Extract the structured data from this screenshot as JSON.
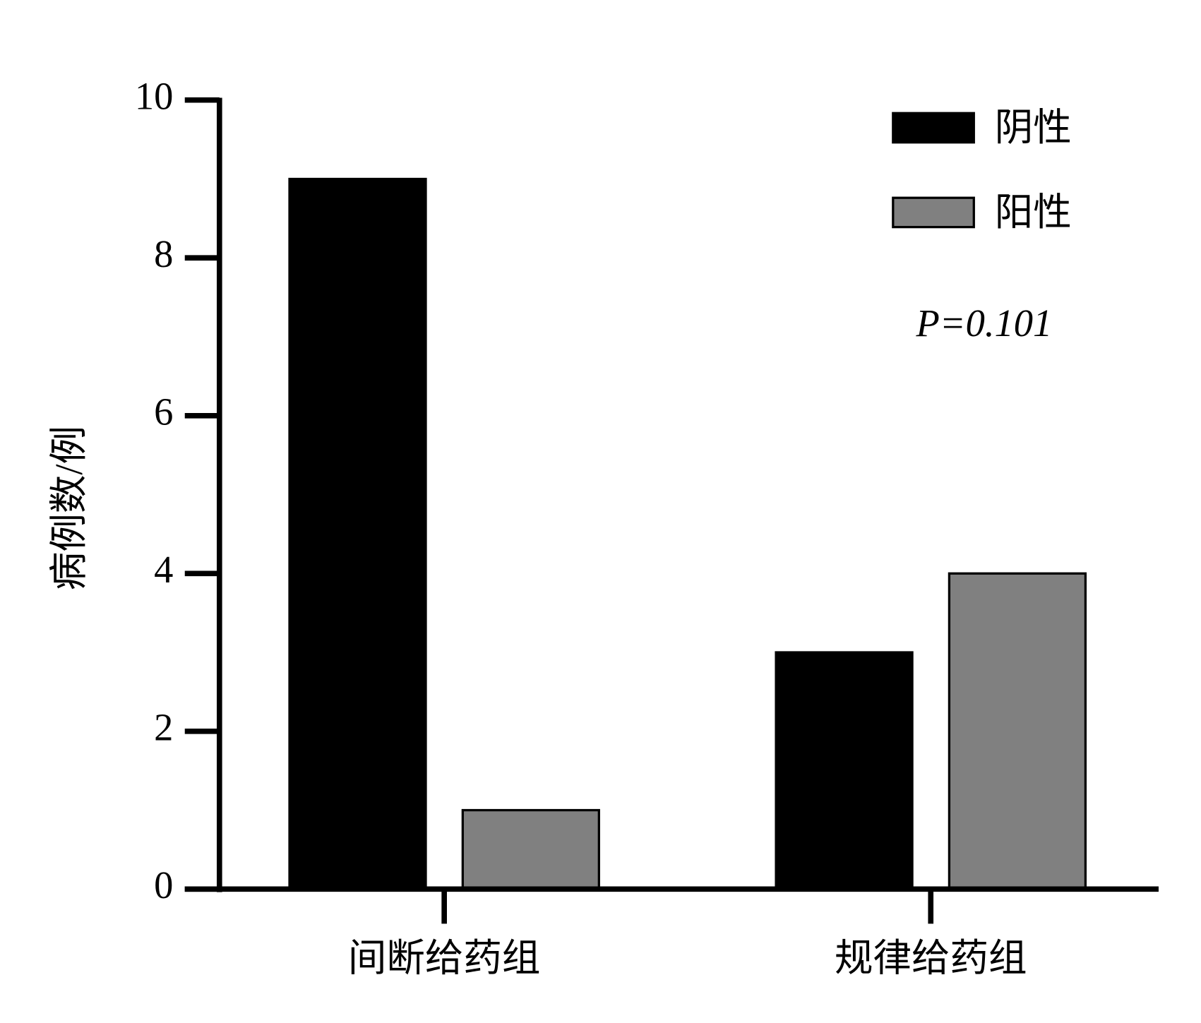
{
  "chart_data": {
    "type": "bar",
    "y_label": "病例数/例",
    "annotation": "P=0.101",
    "categories": [
      "间断给药组",
      "规律给药组"
    ],
    "series": [
      {
        "name": "阴性",
        "color": "#000000",
        "values": [
          9,
          3
        ]
      },
      {
        "name": "阳性",
        "color": "#808080",
        "values": [
          1,
          4
        ]
      }
    ],
    "ylim": [
      0,
      10
    ],
    "yticks": [
      0,
      2,
      4,
      6,
      8,
      10
    ],
    "legend": "upper right"
  }
}
